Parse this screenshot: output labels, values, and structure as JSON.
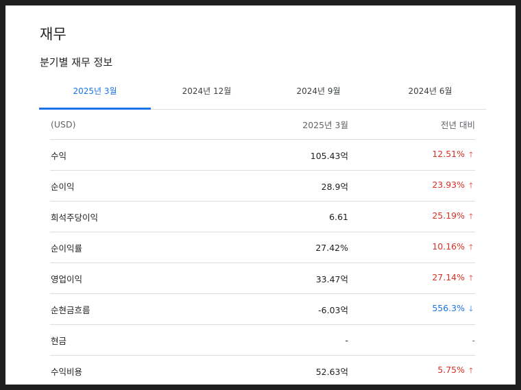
{
  "title": "재무",
  "subtitle": "분기별 재무 정보",
  "tabs": [
    {
      "label": "2025년 3월",
      "active": true
    },
    {
      "label": "2024년 12월",
      "active": false
    },
    {
      "label": "2024년 9월",
      "active": false
    },
    {
      "label": "2024년 6월",
      "active": false
    }
  ],
  "table": {
    "headers": {
      "currency": "(USD)",
      "period": "2025년 3월",
      "yoy": "전년 대비"
    },
    "rows": [
      {
        "label": "수익",
        "value": "105.43억",
        "change": "12.51%",
        "trend": "up"
      },
      {
        "label": "순이익",
        "value": "28.9억",
        "change": "23.93%",
        "trend": "up"
      },
      {
        "label": "희석주당이익",
        "value": "6.61",
        "change": "25.19%",
        "trend": "up"
      },
      {
        "label": "순이익률",
        "value": "27.42%",
        "change": "10.16%",
        "trend": "up"
      },
      {
        "label": "영업이익",
        "value": "33.47억",
        "change": "27.14%",
        "trend": "up"
      },
      {
        "label": "순현금흐름",
        "value": "-6.03억",
        "change": "556.3%",
        "trend": "down"
      },
      {
        "label": "현금",
        "value": "-",
        "change": "-",
        "trend": "none"
      },
      {
        "label": "수익비용",
        "value": "52.63억",
        "change": "5.75%",
        "trend": "up"
      }
    ]
  },
  "colors": {
    "accent": "#1a73e8",
    "up": "#d93025",
    "down": "#1a73e8"
  },
  "icons": {
    "up": "arrow-up-icon",
    "down": "arrow-down-icon"
  }
}
